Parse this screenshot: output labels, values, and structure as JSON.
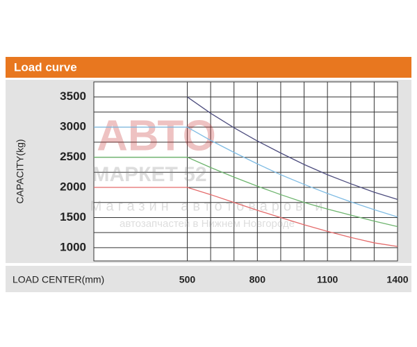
{
  "chart_data": {
    "type": "line",
    "title": "Load curve",
    "x_label": "LOAD CENTER(mm)",
    "y_label": "CAPACITY(kg)",
    "x": [
      100,
      500,
      600,
      700,
      800,
      900,
      1000,
      1100,
      1200,
      1300,
      1400
    ],
    "series": [
      {
        "color": "#e46a6a",
        "values": [
          2000,
          2000,
          1880,
          1750,
          1620,
          1500,
          1380,
          1270,
          1170,
          1080,
          1020
        ]
      },
      {
        "color": "#6db46d",
        "values": [
          2500,
          2500,
          2330,
          2170,
          2020,
          1880,
          1750,
          1640,
          1540,
          1440,
          1350
        ]
      },
      {
        "color": "#7fbce4",
        "values": [
          3000,
          3000,
          2780,
          2580,
          2390,
          2210,
          2050,
          1900,
          1760,
          1630,
          1510
        ]
      },
      {
        "color": "#4d4d7e",
        "values": [
          null,
          3500,
          3230,
          2990,
          2770,
          2570,
          2380,
          2210,
          2060,
          1920,
          1800
        ]
      }
    ],
    "xlim": [
      100,
      1400
    ],
    "ylim": [
      780,
      3750
    ],
    "xticks": [
      500,
      800,
      1100,
      1400
    ],
    "yticks": [
      1000,
      1500,
      2000,
      2500,
      3000,
      3500
    ],
    "xgrid": [
      500,
      600,
      700,
      800,
      900,
      1000,
      1100,
      1200,
      1300,
      1400
    ],
    "ygrid": [
      1000,
      1250,
      1500,
      1750,
      2000,
      2250,
      2500,
      2750,
      3000,
      3250,
      3500
    ],
    "watermark": [
      "АВТО",
      "МАРКЕТ 52",
      "Магазин автотоваров и",
      "автозапчастей в Нижнем Новгороде"
    ]
  }
}
